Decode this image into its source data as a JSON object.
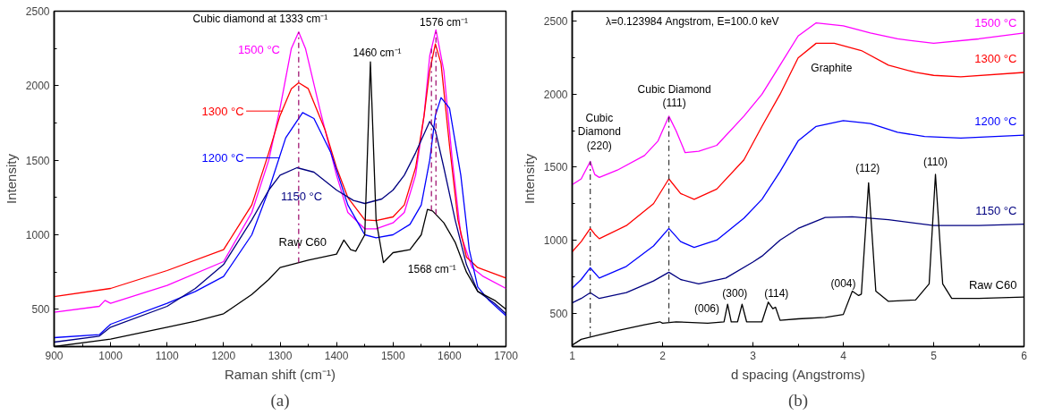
{
  "chart_data": [
    {
      "type": "line",
      "xlabel": "Raman shift (cm⁻¹)",
      "ylabel": "Intensity",
      "xlim": [
        900,
        1700
      ],
      "ylim": [
        250,
        2500
      ],
      "xticks": [
        900,
        1000,
        1100,
        1200,
        1300,
        1400,
        1500,
        1600,
        1700
      ],
      "yticks": [
        500,
        1000,
        1500,
        2000,
        2500
      ],
      "grid": false,
      "legend": "left",
      "series": [
        {
          "name": "1500 °C",
          "color": "#ff00ff",
          "x": [
            900,
            980,
            990,
            1000,
            1100,
            1200,
            1250,
            1280,
            1300,
            1320,
            1333,
            1345,
            1370,
            1400,
            1420,
            1450,
            1470,
            1500,
            1520,
            1540,
            1555,
            1565,
            1576,
            1590,
            1605,
            1620,
            1640,
            1660,
            1700
          ],
          "values": [
            480,
            520,
            560,
            540,
            660,
            820,
            1150,
            1500,
            1850,
            2250,
            2360,
            2250,
            1850,
            1400,
            1150,
            1040,
            1040,
            1080,
            1150,
            1400,
            1800,
            2200,
            2375,
            2100,
            1500,
            1000,
            780,
            720,
            640
          ]
        },
        {
          "name": "1300 °C",
          "color": "#ff0000",
          "x": [
            900,
            1000,
            1100,
            1200,
            1250,
            1280,
            1300,
            1320,
            1333,
            1350,
            1380,
            1400,
            1420,
            1450,
            1470,
            1500,
            1520,
            1540,
            1555,
            1565,
            1575,
            1585,
            1600,
            1615,
            1630,
            1650,
            1700
          ],
          "values": [
            585,
            640,
            760,
            900,
            1200,
            1550,
            1800,
            1980,
            2020,
            1980,
            1700,
            1450,
            1250,
            1100,
            1095,
            1120,
            1200,
            1450,
            1800,
            2100,
            2280,
            2150,
            1600,
            1100,
            850,
            780,
            710
          ]
        },
        {
          "name": "1200 °C",
          "color": "#0000ff",
          "x": [
            900,
            980,
            1000,
            1100,
            1150,
            1200,
            1250,
            1280,
            1310,
            1340,
            1360,
            1390,
            1420,
            1450,
            1470,
            1500,
            1530,
            1550,
            1565,
            1575,
            1585,
            1600,
            1620,
            1635,
            1650,
            1670,
            1700
          ],
          "values": [
            310,
            330,
            400,
            540,
            620,
            720,
            1000,
            1300,
            1650,
            1820,
            1780,
            1550,
            1200,
            1000,
            980,
            1000,
            1070,
            1200,
            1500,
            1800,
            1920,
            1850,
            1400,
            900,
            650,
            560,
            457
          ]
        },
        {
          "name": "1150 °C",
          "color": "#000080",
          "x": [
            900,
            980,
            1000,
            1100,
            1150,
            1200,
            1250,
            1280,
            1300,
            1330,
            1360,
            1400,
            1430,
            1450,
            1480,
            1500,
            1520,
            1540,
            1565,
            1575,
            1590,
            1610,
            1630,
            1650,
            1680,
            1700
          ],
          "values": [
            280,
            320,
            380,
            520,
            640,
            800,
            1100,
            1300,
            1400,
            1450,
            1420,
            1300,
            1230,
            1210,
            1240,
            1300,
            1400,
            1550,
            1760,
            1700,
            1450,
            1100,
            800,
            620,
            540,
            470
          ]
        },
        {
          "name": "Raw C60",
          "color": "#000000",
          "x": [
            900,
            1000,
            1100,
            1150,
            1200,
            1250,
            1280,
            1300,
            1350,
            1400,
            1413,
            1425,
            1434,
            1450,
            1460,
            1470,
            1483,
            1500,
            1530,
            1550,
            1561,
            1570,
            1590,
            1610,
            1630,
            1650,
            1680,
            1700
          ],
          "values": [
            250,
            300,
            380,
            420,
            470,
            600,
            700,
            780,
            830,
            870,
            965,
            900,
            890,
            1000,
            2160,
            1100,
            814,
            880,
            900,
            1000,
            1170,
            1160,
            1080,
            950,
            750,
            620,
            560,
            500
          ]
        }
      ],
      "ref_lines": [
        {
          "axis": "x",
          "value": 1333,
          "color": "#990066",
          "line_style": "dashed"
        },
        {
          "axis": "x",
          "value": 1576,
          "color": "#990066",
          "line_style": "dashed"
        },
        {
          "axis": "x",
          "value": 1568,
          "color": "#990066",
          "line_style": "dashed"
        }
      ],
      "annotations": [
        "Cubic diamond at 1333 cm⁻¹",
        "1576 cm⁻¹",
        "1460 cm⁻¹",
        "1568 cm⁻¹",
        "(a)"
      ]
    },
    {
      "type": "line",
      "xlabel": "d spacing (Angstroms)",
      "ylabel": "Intensity",
      "xlim": [
        1,
        6
      ],
      "ylim": [
        270,
        2570
      ],
      "xticks": [
        1,
        2,
        3,
        4,
        5,
        6
      ],
      "yticks": [
        500,
        1000,
        1500,
        2000,
        2500
      ],
      "grid": false,
      "series": [
        {
          "name": "1500 °C",
          "color": "#ff00ff",
          "x": [
            1.0,
            1.1,
            1.2,
            1.25,
            1.3,
            1.5,
            1.8,
            1.95,
            2.07,
            2.15,
            2.25,
            2.4,
            2.6,
            2.9,
            3.1,
            3.3,
            3.5,
            3.7,
            4.0,
            4.3,
            4.6,
            5.0,
            5.5,
            6.0
          ],
          "values": [
            1380,
            1420,
            1540,
            1450,
            1430,
            1480,
            1580,
            1680,
            1850,
            1750,
            1600,
            1610,
            1650,
            1850,
            2000,
            2200,
            2400,
            2490,
            2470,
            2420,
            2380,
            2350,
            2380,
            2420
          ]
        },
        {
          "name": "1300 °C",
          "color": "#ff0000",
          "x": [
            1.0,
            1.1,
            1.2,
            1.25,
            1.3,
            1.6,
            1.9,
            2.07,
            2.2,
            2.35,
            2.6,
            2.9,
            3.1,
            3.3,
            3.5,
            3.7,
            3.9,
            4.2,
            4.5,
            4.8,
            5.0,
            5.3,
            6.0
          ],
          "values": [
            920,
            990,
            1080,
            1040,
            1010,
            1100,
            1250,
            1420,
            1320,
            1280,
            1350,
            1550,
            1780,
            2000,
            2250,
            2350,
            2350,
            2300,
            2200,
            2150,
            2130,
            2120,
            2150
          ]
        },
        {
          "name": "1200 °C",
          "color": "#0000ff",
          "x": [
            1.0,
            1.1,
            1.2,
            1.3,
            1.6,
            1.9,
            2.07,
            2.2,
            2.35,
            2.6,
            2.9,
            3.1,
            3.3,
            3.5,
            3.7,
            4.0,
            4.3,
            4.6,
            4.9,
            5.3,
            6.0
          ],
          "values": [
            670,
            730,
            810,
            740,
            820,
            960,
            1080,
            990,
            950,
            1000,
            1150,
            1280,
            1470,
            1680,
            1780,
            1820,
            1800,
            1740,
            1710,
            1700,
            1720
          ]
        },
        {
          "name": "1150 °C",
          "color": "#000080",
          "x": [
            1.0,
            1.1,
            1.2,
            1.3,
            1.6,
            1.9,
            2.07,
            2.2,
            2.4,
            2.7,
            3.0,
            3.1,
            3.3,
            3.5,
            3.8,
            4.1,
            4.5,
            5.0,
            5.5,
            6.0
          ],
          "values": [
            570,
            600,
            640,
            600,
            640,
            720,
            780,
            730,
            700,
            740,
            850,
            890,
            1000,
            1080,
            1156,
            1160,
            1140,
            1100,
            1100,
            1110
          ]
        },
        {
          "name": "Raw C60",
          "color": "#000000",
          "x": [
            1.0,
            1.1,
            1.3,
            1.5,
            1.8,
            1.97,
            2.0,
            2.15,
            2.5,
            2.68,
            2.72,
            2.76,
            2.83,
            2.88,
            2.93,
            3.1,
            3.17,
            3.22,
            3.25,
            3.3,
            3.5,
            3.8,
            4.0,
            4.1,
            4.17,
            4.2,
            4.28,
            4.36,
            4.5,
            4.8,
            4.95,
            5.02,
            5.1,
            5.2,
            5.5,
            6.0
          ],
          "values": [
            280,
            320,
            350,
            380,
            420,
            440,
            430,
            440,
            430,
            440,
            560,
            440,
            440,
            560,
            440,
            440,
            575,
            530,
            540,
            450,
            460,
            470,
            490,
            650,
            620,
            630,
            1393,
            650,
            580,
            590,
            700,
            1451,
            700,
            600,
            600,
            610
          ]
        }
      ],
      "ref_lines": [
        {
          "axis": "x",
          "value": 1.2,
          "color": "#333333",
          "line_style": "dashed"
        },
        {
          "axis": "x",
          "value": 2.07,
          "color": "#333333",
          "line_style": "dashed"
        }
      ],
      "annotations": [
        "λ=0.123984 Angstrom, E=100.0 keV",
        "Cubic\nDiamond\n(220)",
        "Cubic Diamond\n(111)",
        "Graphite",
        "(006)",
        "(300)",
        "(114)",
        "(004)",
        "(112)",
        "(110)",
        "(b)"
      ]
    }
  ]
}
